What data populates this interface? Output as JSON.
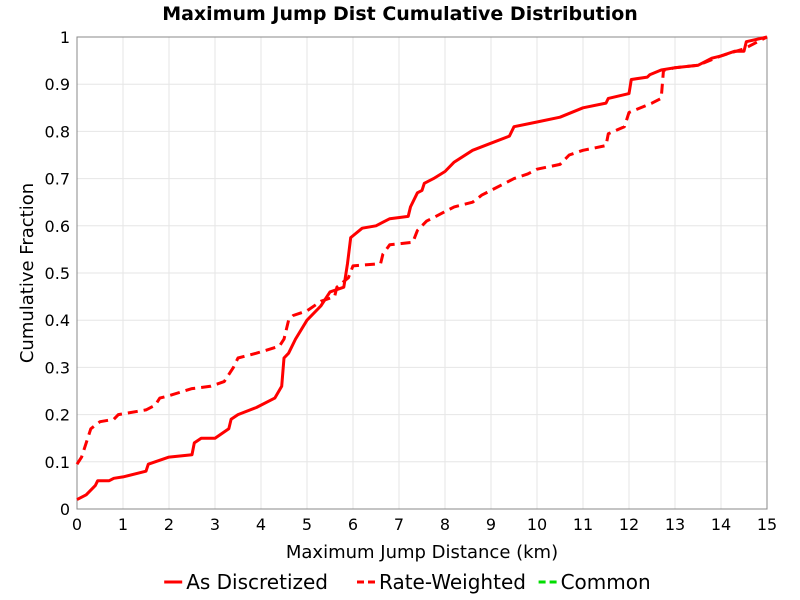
{
  "chart_data": {
    "type": "line",
    "title": "Maximum Jump Dist Cumulative Distribution",
    "xlabel": "Maximum Jump Distance (km)",
    "ylabel": "Cumulative Fraction",
    "xlim": [
      0,
      15
    ],
    "ylim": [
      0,
      1
    ],
    "grid": true,
    "legend_placement": "bottom",
    "x_tick_labels": [
      "0",
      "1",
      "2",
      "3",
      "4",
      "5",
      "6",
      "7",
      "8",
      "9",
      "10",
      "11",
      "12",
      "13",
      "14",
      "15"
    ],
    "y_tick_labels": [
      "0",
      "0.1",
      "0.2",
      "0.3",
      "0.4",
      "0.5",
      "0.6",
      "0.7",
      "0.8",
      "0.9",
      "1"
    ],
    "series": [
      {
        "name": "As Discretized",
        "color": "#ff0000",
        "style": "solid",
        "x": [
          0,
          0.2,
          0.4,
          0.45,
          0.7,
          0.8,
          1.0,
          1.5,
          1.55,
          1.7,
          2.0,
          2.5,
          2.55,
          2.7,
          3.0,
          3.3,
          3.35,
          3.5,
          3.9,
          4.3,
          4.45,
          4.5,
          4.6,
          4.75,
          5.0,
          5.3,
          5.5,
          5.8,
          5.88,
          5.95,
          6.2,
          6.5,
          6.8,
          7.2,
          7.25,
          7.4,
          7.5,
          7.55,
          7.75,
          8.0,
          8.2,
          8.6,
          9.0,
          9.4,
          9.5,
          10.0,
          10.5,
          11.0,
          11.5,
          11.55,
          12.0,
          12.05,
          12.4,
          12.45,
          12.7,
          13.0,
          13.5,
          13.8,
          14.0,
          14.3,
          14.5,
          14.55,
          15.0
        ],
        "y": [
          0.02,
          0.03,
          0.05,
          0.06,
          0.06,
          0.065,
          0.068,
          0.08,
          0.095,
          0.1,
          0.11,
          0.115,
          0.14,
          0.15,
          0.15,
          0.17,
          0.19,
          0.2,
          0.215,
          0.235,
          0.26,
          0.32,
          0.33,
          0.36,
          0.4,
          0.43,
          0.46,
          0.47,
          0.52,
          0.575,
          0.595,
          0.6,
          0.615,
          0.62,
          0.64,
          0.67,
          0.675,
          0.69,
          0.7,
          0.715,
          0.735,
          0.76,
          0.775,
          0.79,
          0.81,
          0.82,
          0.83,
          0.85,
          0.86,
          0.87,
          0.88,
          0.91,
          0.915,
          0.92,
          0.93,
          0.935,
          0.94,
          0.955,
          0.96,
          0.97,
          0.97,
          0.99,
          1.0
        ]
      },
      {
        "name": "Rate-Weighted",
        "color": "#ff0000",
        "style": "dashed",
        "x": [
          0,
          0.1,
          0.2,
          0.3,
          0.5,
          0.8,
          0.9,
          1.5,
          1.7,
          1.8,
          2.0,
          2.5,
          2.9,
          3.2,
          3.4,
          3.5,
          3.9,
          4.4,
          4.5,
          4.6,
          4.7,
          5.0,
          5.3,
          5.6,
          5.65,
          5.9,
          6.0,
          6.6,
          6.65,
          6.8,
          7.3,
          7.4,
          7.6,
          7.8,
          8.0,
          8.2,
          8.6,
          8.8,
          9.0,
          9.3,
          9.5,
          9.8,
          10.0,
          10.5,
          10.7,
          11.0,
          11.5,
          11.55,
          11.9,
          12.0,
          12.5,
          12.7,
          12.75,
          12.8,
          13.0,
          13.5,
          14.0,
          14.5,
          15.0
        ],
        "y": [
          0.095,
          0.11,
          0.14,
          0.17,
          0.185,
          0.19,
          0.2,
          0.21,
          0.22,
          0.235,
          0.24,
          0.255,
          0.26,
          0.27,
          0.3,
          0.32,
          0.33,
          0.345,
          0.36,
          0.4,
          0.41,
          0.42,
          0.44,
          0.45,
          0.47,
          0.49,
          0.515,
          0.52,
          0.54,
          0.56,
          0.565,
          0.59,
          0.61,
          0.62,
          0.63,
          0.64,
          0.65,
          0.665,
          0.675,
          0.69,
          0.7,
          0.71,
          0.72,
          0.73,
          0.75,
          0.76,
          0.77,
          0.795,
          0.81,
          0.84,
          0.86,
          0.87,
          0.93,
          0.93,
          0.935,
          0.94,
          0.96,
          0.975,
          1.0
        ]
      },
      {
        "name": "Common",
        "color": "#00dd00",
        "style": "dashed",
        "x": [],
        "y": []
      }
    ]
  }
}
